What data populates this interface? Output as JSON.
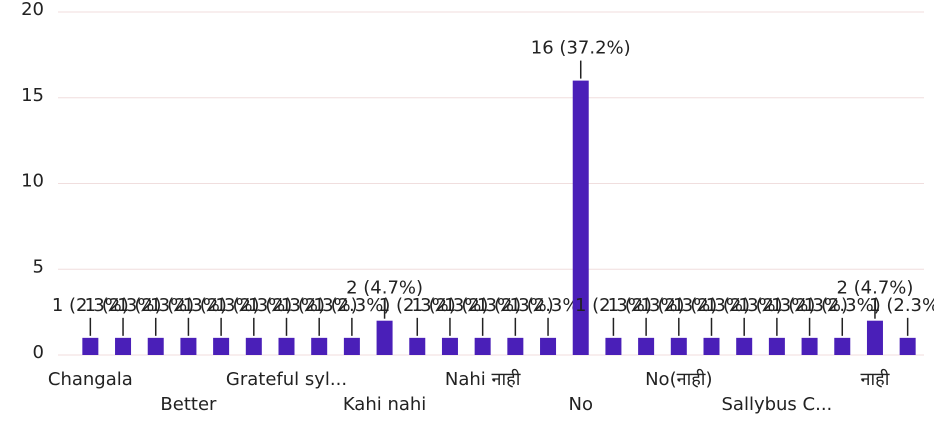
{
  "chart_data": {
    "type": "bar",
    "categories": [
      "Changala",
      null,
      null,
      "Better",
      null,
      null,
      "Grateful syl...",
      null,
      null,
      "Kahi nahi",
      null,
      null,
      "Nahi नाही",
      null,
      null,
      "No",
      null,
      null,
      "No(नाही)",
      null,
      null,
      "Sallybus C...",
      null,
      null,
      "नाही",
      null
    ],
    "values": [
      1,
      1,
      1,
      1,
      1,
      1,
      1,
      1,
      1,
      2,
      1,
      1,
      1,
      1,
      1,
      16,
      1,
      1,
      1,
      1,
      1,
      1,
      1,
      1,
      2,
      1
    ],
    "value_labels": [
      "1 (2.3%)",
      "1 (2.3%)",
      "1 (2.3%)",
      "1 (2.3%)",
      "1 (2.3%)",
      "1 (2.3%)",
      "1 (2.3%)",
      "1 (2.3%)",
      "1 (2.3%)",
      "2 (4.7%)",
      "1 (2.3%)",
      "1 (2.3%)",
      "1 (2.3%)",
      "1 (2.3%)",
      "1 (2.3%)",
      "16 (37.2%)",
      "1 (2.3%)",
      "1 (2.3%)",
      "1 (2.3%)",
      "1 (2.3%)",
      "1 (2.3%)",
      "1 (2.3%)",
      "1 (2.3%)",
      "1 (2.3%)",
      "2 (4.7%)",
      "1 (2.3%)"
    ],
    "color": "#4a1fb8",
    "ylim": [
      0,
      20
    ],
    "yticks": [
      0,
      5,
      10,
      15,
      20
    ],
    "grid": true
  }
}
